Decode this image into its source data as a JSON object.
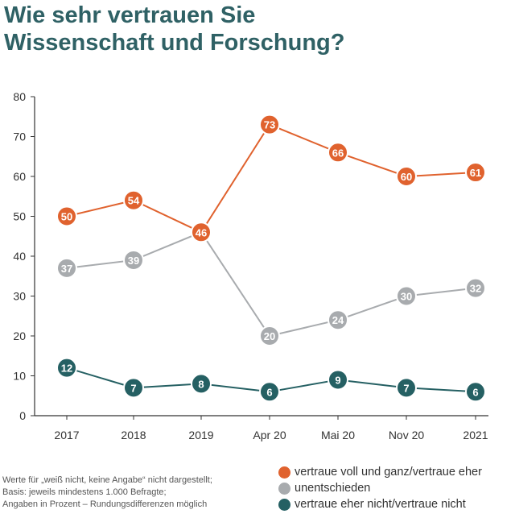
{
  "title": "Wie sehr vertrauen Sie\nWissenschaft und Forschung?",
  "footnote": [
    "Werte für „weiß nicht, keine Angabe“ nicht dargestellt;",
    "Basis: jeweils mindestens 1.000 Befragte;",
    "Angaben in Prozent – Rundungsdifferenzen möglich"
  ],
  "chart_data": {
    "type": "line",
    "categories": [
      "2017",
      "2018",
      "2019",
      "Apr 20",
      "Mai 20",
      "Nov 20",
      "2021"
    ],
    "ylim": [
      0,
      80
    ],
    "yticks": [
      0,
      10,
      20,
      30,
      40,
      50,
      60,
      70,
      80
    ],
    "grid": false,
    "legend_position": "bottom-right",
    "series": [
      {
        "name": "vertraue voll und ganz/vertraue eher",
        "color": "#e0622e",
        "values": [
          50,
          54,
          46,
          73,
          66,
          60,
          61
        ]
      },
      {
        "name": "unentschieden",
        "color": "#a8abae",
        "values": [
          37,
          39,
          46,
          20,
          24,
          30,
          32
        ]
      },
      {
        "name": "vertraue eher nicht/vertraue nicht",
        "color": "#256063",
        "values": [
          12,
          7,
          8,
          6,
          9,
          7,
          6
        ]
      }
    ]
  }
}
